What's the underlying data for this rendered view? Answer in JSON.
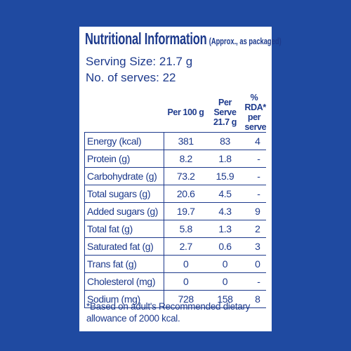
{
  "header": {
    "title": "Nutritional Information",
    "note": "(Approx., as packaged)",
    "serving_size": "Serving Size: 21.7 g",
    "serves": "No. of serves: 22"
  },
  "table": {
    "columns": [
      "Per 100 g",
      "Per Serve 21.7 g",
      "% RDA* per serve"
    ],
    "rows": [
      [
        "Energy (kcal)",
        "381",
        "83",
        "4"
      ],
      [
        "Protein (g)",
        "8.2",
        "1.8",
        "-"
      ],
      [
        "Carbohydrate (g)",
        "73.2",
        "15.9",
        "-"
      ],
      [
        "Total sugars (g)",
        "20.6",
        "4.5",
        "-"
      ],
      [
        "Added sugars (g)",
        "19.7",
        "4.3",
        "9"
      ],
      [
        "Total fat (g)",
        "5.8",
        "1.3",
        "2"
      ],
      [
        "Saturated fat (g)",
        "2.7",
        "0.6",
        "3"
      ],
      [
        "Trans fat (g)",
        "0",
        "0",
        "0"
      ],
      [
        "Cholesterol (mg)",
        "0",
        "0",
        "-"
      ],
      [
        "Sodium (mg)",
        "728",
        "158",
        "8"
      ]
    ]
  },
  "footnote": "*Based on adult's Recommended dietary allowance of 2000 kcal."
}
